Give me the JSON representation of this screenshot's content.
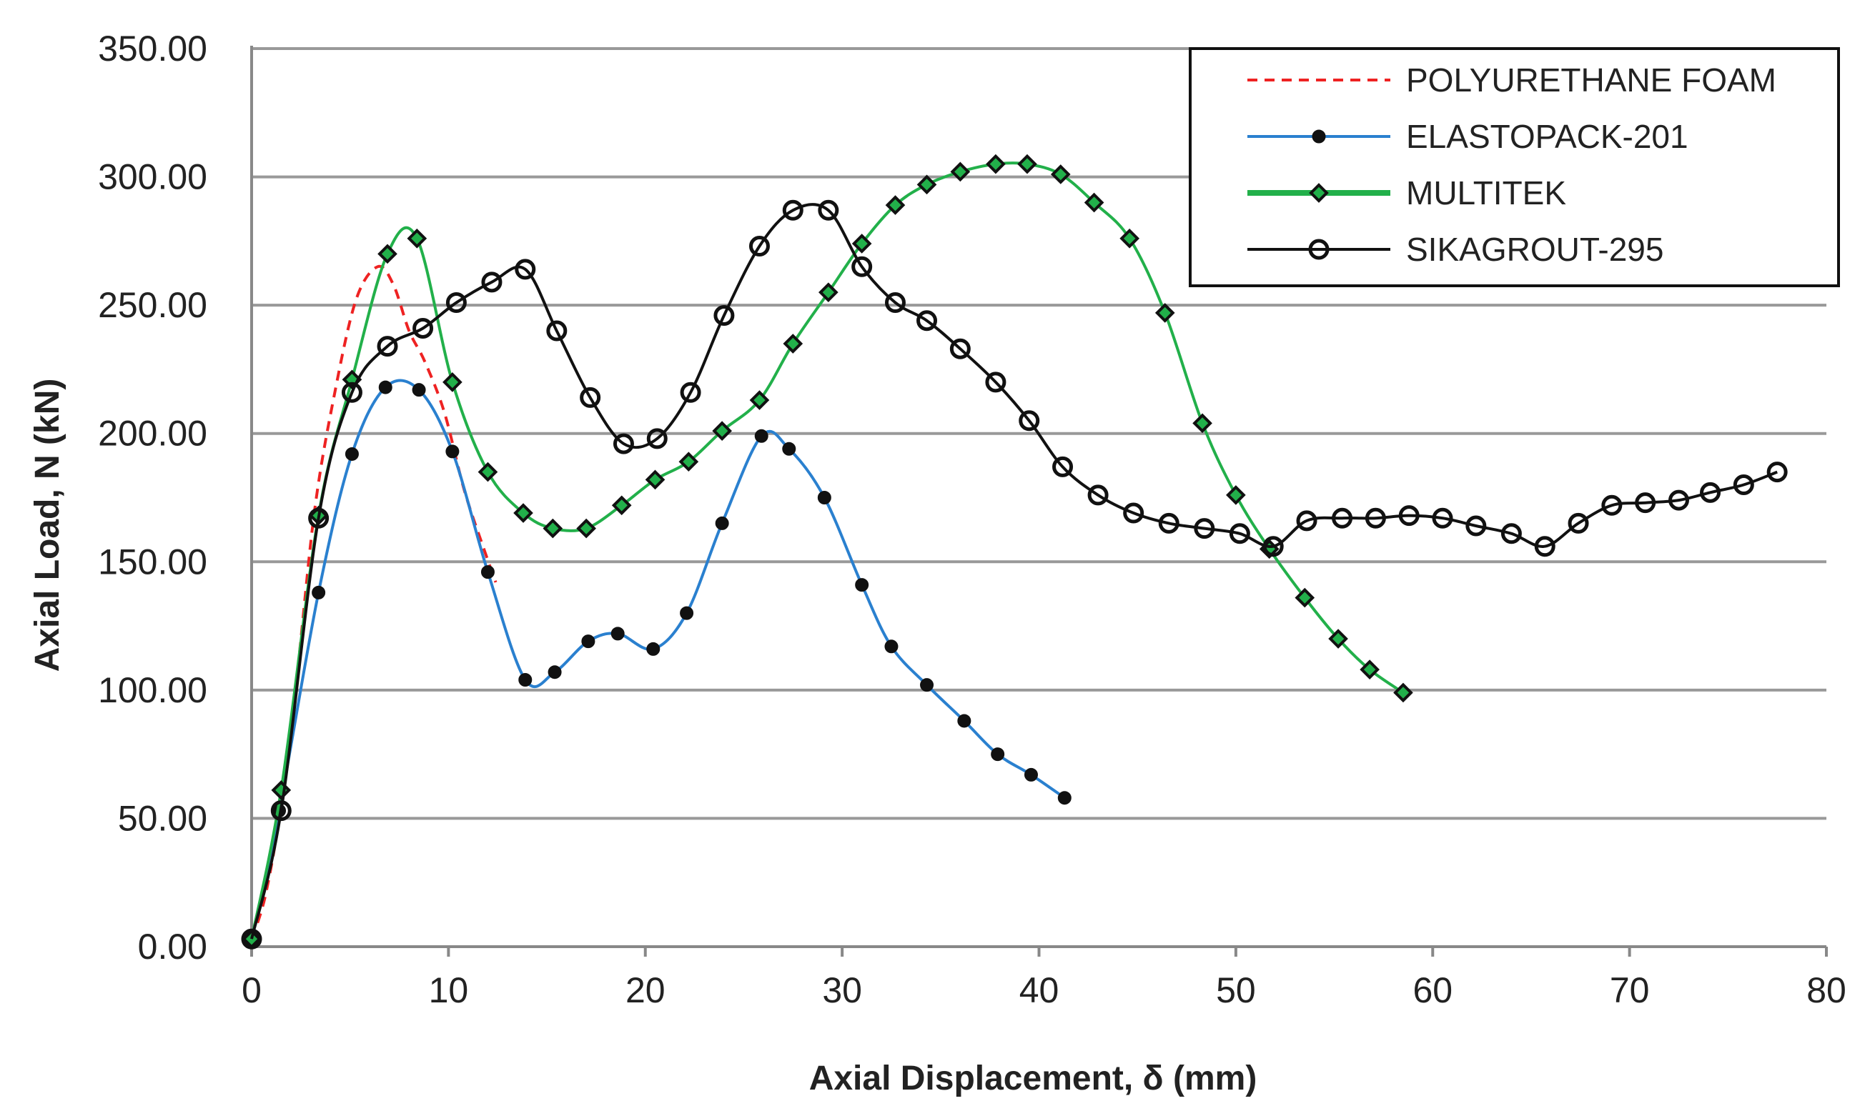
{
  "chart_data": {
    "type": "line",
    "title": "",
    "xlabel": "Axial Displacement, δ (mm)",
    "ylabel": "Axial Load, N (kN)",
    "xlim": [
      0,
      80
    ],
    "ylim": [
      0,
      350
    ],
    "x_ticks": [
      "0",
      "10",
      "20",
      "30",
      "40",
      "50",
      "60",
      "70",
      "80"
    ],
    "y_ticks": [
      "0.00",
      "50.00",
      "100.00",
      "150.00",
      "200.00",
      "250.00",
      "300.00",
      "350.00"
    ],
    "grid": "horizontal",
    "legend_position": "top-right",
    "series": [
      {
        "name": "POLYURETHANE FOAM",
        "color": "#ee2222",
        "line_style": "dashed",
        "marker": "none",
        "x": [
          0,
          0.7,
          1.5,
          2.3,
          3.2,
          4.2,
          5.3,
          6.4,
          7.2,
          8.0,
          8.8,
          9.8,
          10.8,
          11.8,
          12.4
        ],
        "y": [
          3,
          20,
          55,
          105,
          170,
          215,
          252,
          265,
          258,
          240,
          228,
          208,
          178,
          155,
          142
        ]
      },
      {
        "name": "ELASTOPACK-201",
        "color": "#2a80cf",
        "line_style": "solid",
        "marker": "filled-circle",
        "x": [
          0,
          1.4,
          3.4,
          5.1,
          6.8,
          8.5,
          10.2,
          12.0,
          13.9,
          15.4,
          17.1,
          18.6,
          20.4,
          22.1,
          23.9,
          25.9,
          27.3,
          29.1,
          31.0,
          32.5,
          34.3,
          36.2,
          37.9,
          39.6,
          41.3
        ],
        "y": [
          3,
          53,
          138,
          192,
          218,
          217,
          193,
          146,
          104,
          107,
          119,
          122,
          116,
          130,
          165,
          199,
          194,
          175,
          141,
          117,
          102,
          88,
          75,
          67,
          58
        ]
      },
      {
        "name": "MULTITEK",
        "color": "#22b04a",
        "line_style": "solid",
        "marker": "diamond",
        "x": [
          0,
          1.5,
          3.4,
          5.1,
          6.9,
          8.4,
          10.2,
          12.0,
          13.8,
          15.3,
          17.0,
          18.8,
          20.5,
          22.2,
          23.9,
          25.8,
          27.5,
          29.3,
          31.0,
          32.7,
          34.3,
          36.0,
          37.8,
          39.4,
          41.1,
          42.8,
          44.6,
          46.4,
          48.3,
          50.0,
          51.7,
          53.5,
          55.2,
          56.8,
          58.5
        ],
        "y": [
          3,
          61,
          168,
          221,
          270,
          276,
          220,
          185,
          169,
          163,
          163,
          172,
          182,
          189,
          201,
          213,
          235,
          255,
          274,
          289,
          297,
          302,
          305,
          305,
          301,
          290,
          276,
          247,
          204,
          176,
          155,
          136,
          120,
          108,
          99
        ]
      },
      {
        "name": "SIKAGROUT-295",
        "color": "#111111",
        "line_style": "solid",
        "marker": "open-circle",
        "x": [
          0,
          1.5,
          3.4,
          5.1,
          6.9,
          8.7,
          10.4,
          12.2,
          13.9,
          15.5,
          17.2,
          18.9,
          20.6,
          22.3,
          24.0,
          25.8,
          27.5,
          29.3,
          31.0,
          32.7,
          34.3,
          36.0,
          37.8,
          39.5,
          41.2,
          43.0,
          44.8,
          46.6,
          48.4,
          50.2,
          51.9,
          53.6,
          55.4,
          57.1,
          58.8,
          60.5,
          62.2,
          64.0,
          65.7,
          67.4,
          69.1,
          70.8,
          72.5,
          74.1,
          75.8,
          77.5
        ],
        "y": [
          3,
          53,
          167,
          216,
          234,
          241,
          251,
          259,
          264,
          240,
          214,
          196,
          198,
          216,
          246,
          273,
          287,
          287,
          265,
          251,
          244,
          233,
          220,
          205,
          187,
          176,
          169,
          165,
          163,
          161,
          156,
          166,
          167,
          167,
          168,
          167,
          164,
          161,
          156,
          165,
          172,
          173,
          174,
          177,
          180,
          185
        ]
      }
    ]
  }
}
